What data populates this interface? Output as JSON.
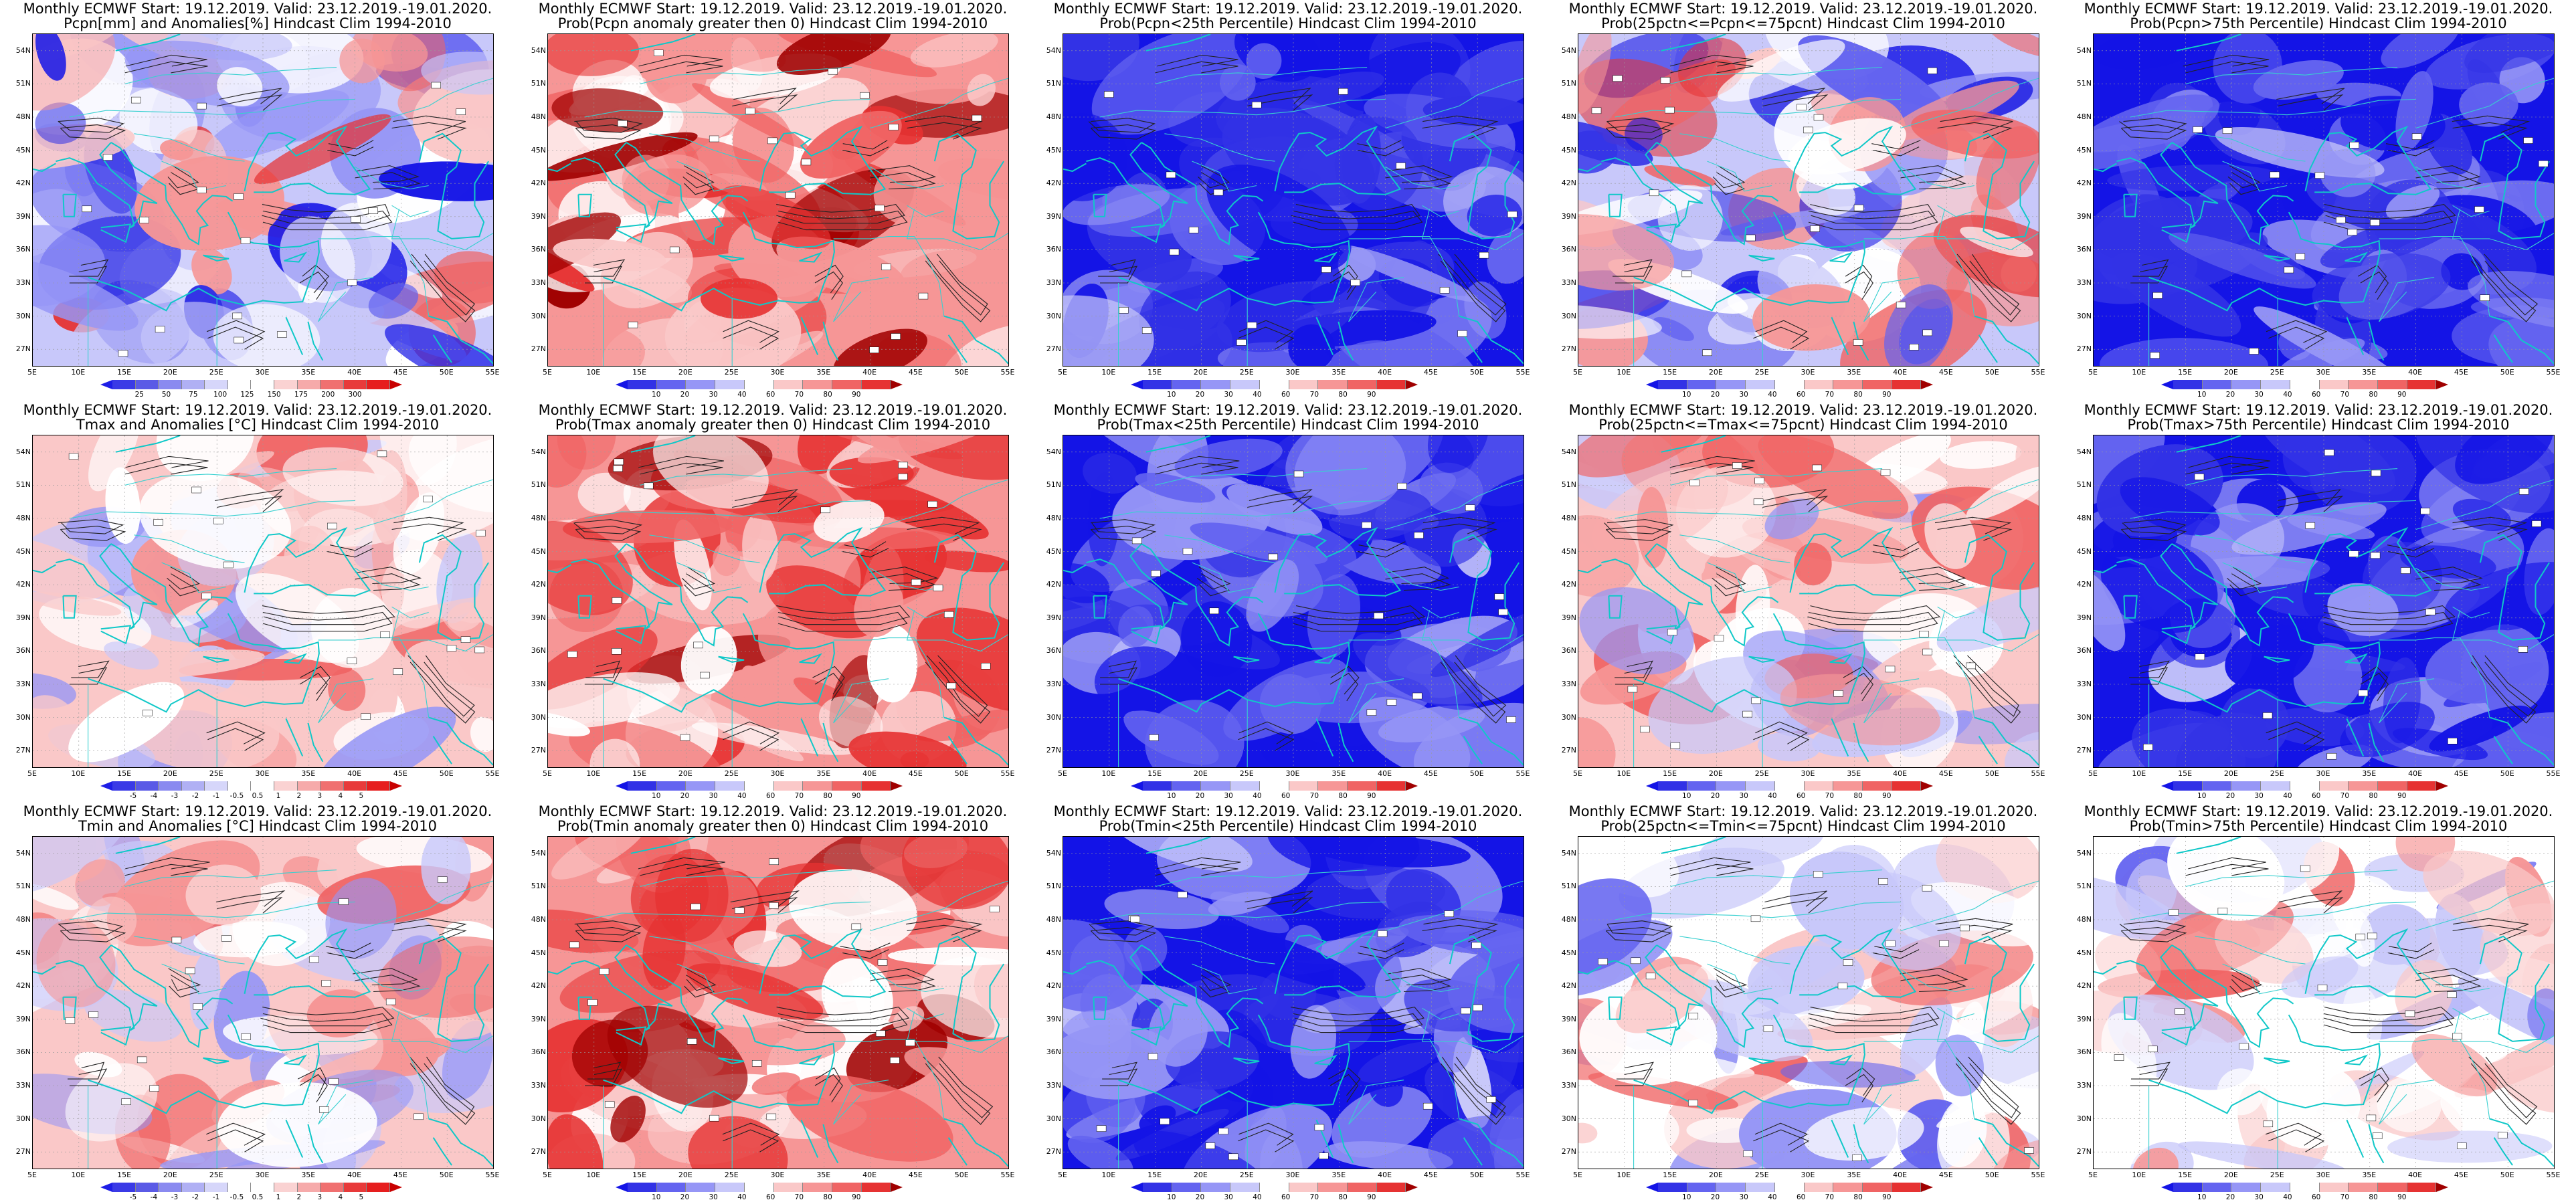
{
  "colors": {
    "anom12": [
      "#1e1ee6",
      "#3a3ae6",
      "#5a5ae6",
      "#8a8af0",
      "#b0b0f4",
      "#d6d6fa",
      "#ffffff",
      "#ffffff",
      "#fad2d2",
      "#f6aaaa",
      "#f07070",
      "#e83a3a",
      "#e61e1e",
      "#c80000"
    ],
    "prob10": [
      "#1414e6",
      "#3232e6",
      "#6464f0",
      "#9696f6",
      "#c8c8fa",
      "#ffffff",
      "#fac8c8",
      "#f69696",
      "#f06464",
      "#e63232",
      "#a00000"
    ],
    "lon": [
      "5E",
      "10E",
      "15E",
      "20E",
      "25E",
      "30E",
      "35E",
      "40E",
      "45E",
      "50E",
      "55E"
    ],
    "lat": [
      "54N",
      "51N",
      "48N",
      "45N",
      "42N",
      "39N",
      "36N",
      "33N",
      "30N",
      "27N"
    ]
  },
  "panels": [
    {
      "line1": "Monthly ECMWF Start: 19.12.2019. Valid: 23.12.2019.-19.01.2020.",
      "line2": "Pcpn[mm] and Anomalies[%] Hindcast Clim 1994-2010",
      "scale": "pcp",
      "labels": [
        "25",
        "50",
        "75",
        "100",
        "125",
        "150",
        "175",
        "200",
        "300"
      ]
    },
    {
      "line1": "Monthly ECMWF Start: 19.12.2019. Valid: 23.12.2019.-19.01.2020.",
      "line2": "Prob(Pcpn anomaly greater then 0) Hindcast Clim 1994-2010",
      "scale": "prob",
      "labels": [
        "10",
        "20",
        "30",
        "40",
        "60",
        "70",
        "80",
        "90"
      ]
    },
    {
      "line1": "Monthly ECMWF Start: 19.12.2019. Valid: 23.12.2019.-19.01.2020.",
      "line2": "Prob(Pcpn<25th Percentile) Hindcast Clim 1994-2010",
      "scale": "prob",
      "labels": [
        "10",
        "20",
        "30",
        "40",
        "60",
        "70",
        "80",
        "90"
      ]
    },
    {
      "line1": "Monthly ECMWF Start: 19.12.2019. Valid: 23.12.2019.-19.01.2020.",
      "line2": "Prob(25pctn<=Pcpn<=75pcnt) Hindcast Clim 1994-2010",
      "scale": "prob",
      "labels": [
        "10",
        "20",
        "30",
        "40",
        "60",
        "70",
        "80",
        "90"
      ]
    },
    {
      "line1": "Monthly ECMWF Start: 19.12.2019. Valid: 23.12.2019.-19.01.2020.",
      "line2": "Prob(Pcpn>75th Percentile) Hindcast Clim 1994-2010",
      "scale": "prob",
      "labels": [
        "10",
        "20",
        "30",
        "40",
        "60",
        "70",
        "80",
        "90"
      ]
    },
    {
      "line1": "Monthly ECMWF Start: 19.12.2019. Valid: 23.12.2019.-19.01.2020.",
      "line2": "Tmax and Anomalies [°C] Hindcast Clim 1994-2010",
      "scale": "temp",
      "labels": [
        "-5",
        "-4",
        "-3",
        "-2",
        "-1",
        "-0.5",
        "0.5",
        "1",
        "2",
        "3",
        "4",
        "5"
      ]
    },
    {
      "line1": "Monthly ECMWF Start: 19.12.2019. Valid: 23.12.2019.-19.01.2020.",
      "line2": "Prob(Tmax anomaly greater then 0) Hindcast Clim 1994-2010",
      "scale": "prob",
      "labels": [
        "10",
        "20",
        "30",
        "40",
        "60",
        "70",
        "80",
        "90"
      ]
    },
    {
      "line1": "Monthly ECMWF Start: 19.12.2019. Valid: 23.12.2019.-19.01.2020.",
      "line2": "Prob(Tmax<25th Percentile) Hindcast Clim 1994-2010",
      "scale": "prob",
      "labels": [
        "10",
        "20",
        "30",
        "40",
        "60",
        "70",
        "80",
        "90"
      ]
    },
    {
      "line1": "Monthly ECMWF Start: 19.12.2019. Valid: 23.12.2019.-19.01.2020.",
      "line2": "Prob(25pctn<=Tmax<=75pcnt) Hindcast Clim 1994-2010",
      "scale": "prob",
      "labels": [
        "10",
        "20",
        "30",
        "40",
        "60",
        "70",
        "80",
        "90"
      ]
    },
    {
      "line1": "Monthly ECMWF Start: 19.12.2019. Valid: 23.12.2019.-19.01.2020.",
      "line2": "Prob(Tmax>75th Percentile) Hindcast Clim 1994-2010",
      "scale": "prob",
      "labels": [
        "10",
        "20",
        "30",
        "40",
        "60",
        "70",
        "80",
        "90"
      ]
    },
    {
      "line1": "Monthly ECMWF Start: 19.12.2019. Valid: 23.12.2019.-19.01.2020.",
      "line2": "Tmin and Anomalies [°C] Hindcast Clim 1994-2010",
      "scale": "temp",
      "labels": [
        "-5",
        "-4",
        "-3",
        "-2",
        "-1",
        "-0.5",
        "0.5",
        "1",
        "2",
        "3",
        "4",
        "5"
      ]
    },
    {
      "line1": "Monthly ECMWF Start: 19.12.2019. Valid: 23.12.2019.-19.01.2020.",
      "line2": "Prob(Tmin anomaly greater then 0) Hindcast Clim 1994-2010",
      "scale": "prob",
      "labels": [
        "10",
        "20",
        "30",
        "40",
        "60",
        "70",
        "80",
        "90"
      ]
    },
    {
      "line1": "Monthly ECMWF Start: 19.12.2019. Valid: 23.12.2019.-19.01.2020.",
      "line2": "Prob(Tmin<25th Percentile) Hindcast Clim 1994-2010",
      "scale": "prob",
      "labels": [
        "10",
        "20",
        "30",
        "40",
        "60",
        "70",
        "80",
        "90"
      ]
    },
    {
      "line1": "Monthly ECMWF Start: 19.12.2019. Valid: 23.12.2019.-19.01.2020.",
      "line2": "Prob(25pctn<=Tmin<=75pcnt) Hindcast Clim 1994-2010",
      "scale": "prob",
      "labels": [
        "10",
        "20",
        "30",
        "40",
        "60",
        "70",
        "80",
        "90"
      ]
    },
    {
      "line1": "Monthly ECMWF Start: 19.12.2019. Valid: 23.12.2019.-19.01.2020.",
      "line2": "Prob(Tmin>75th Percentile) Hindcast Clim 1994-2010",
      "scale": "prob",
      "labels": [
        "10",
        "20",
        "30",
        "40",
        "60",
        "70",
        "80",
        "90"
      ]
    }
  ],
  "field_tone": [
    "mixed",
    "red",
    "blue",
    "mixed",
    "blue",
    "pink",
    "red",
    "blue",
    "pink",
    "blue",
    "pink",
    "red",
    "blue",
    "light",
    "light"
  ]
}
